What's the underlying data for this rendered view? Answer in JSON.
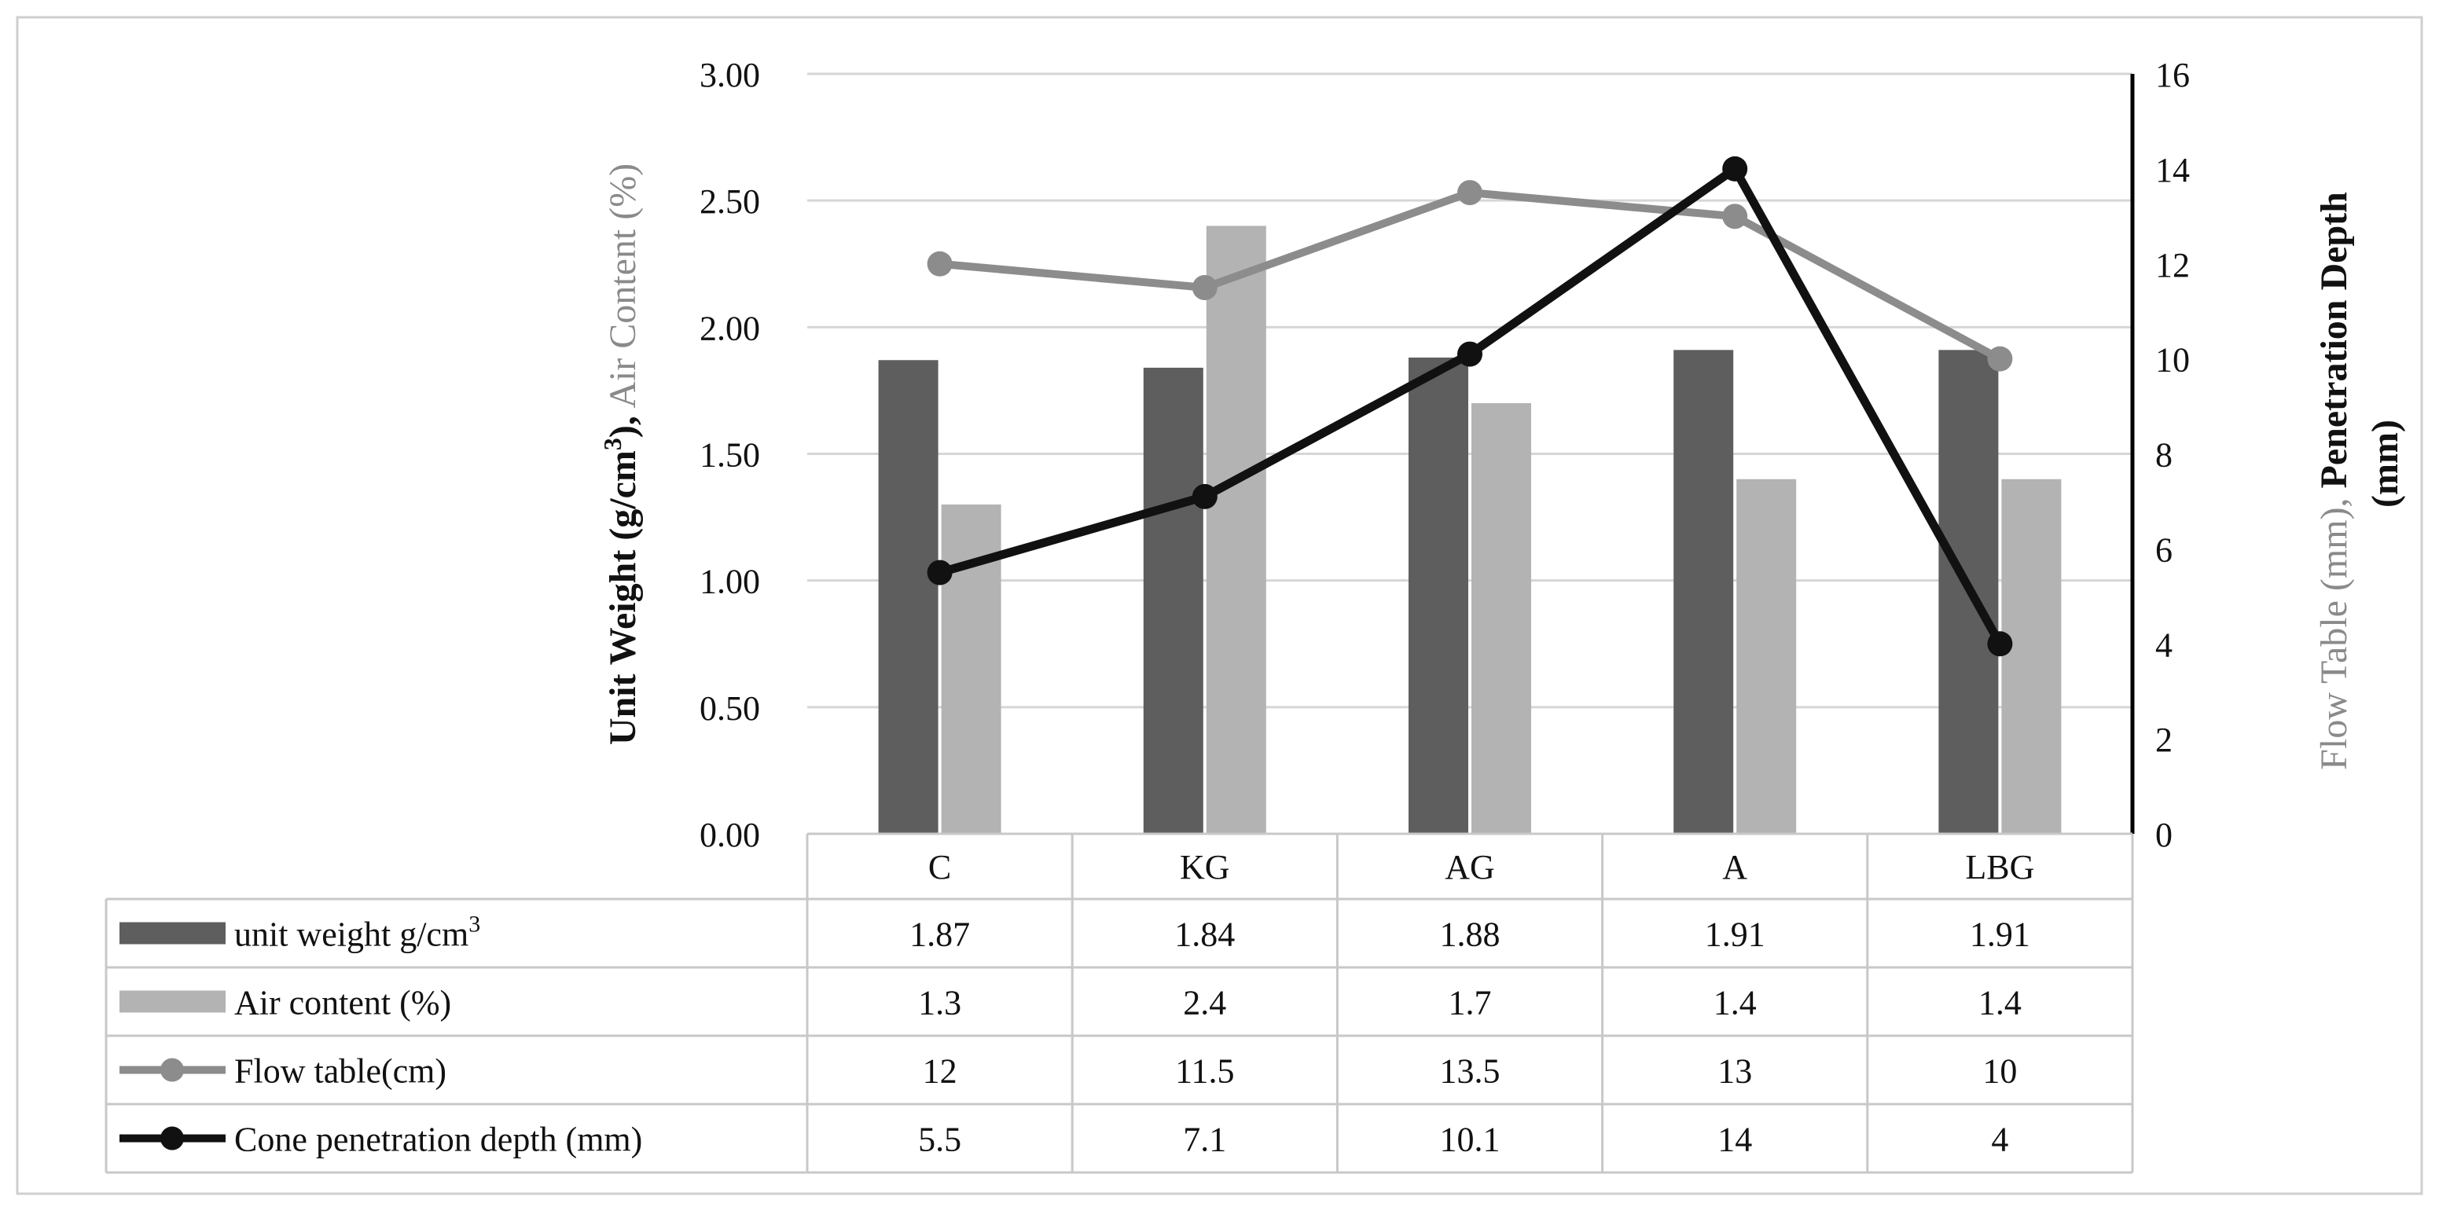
{
  "colors": {
    "unit_weight": "#5e5e5e",
    "air_content": "#b3b3b3",
    "flow_table": "#8c8c8c",
    "cone_penetration": "#111111",
    "grid": "#d6d6d6",
    "table_border": "#c8c8c8",
    "frame": "#cfcfcf",
    "text": "#111111",
    "right_axis_gray_text": "#8a8a8a"
  },
  "chart_data": {
    "type": "bar",
    "categories": [
      "C",
      "KG",
      "AG",
      "A",
      "LBG"
    ],
    "left_axis": {
      "range": [
        0,
        3
      ],
      "ticks": [
        "0.00",
        "0.50",
        "1.00",
        "1.50",
        "2.00",
        "2.50",
        "3.00"
      ],
      "label_black_part": "Unit  Weight (g/cm",
      "label_superscript": "3",
      "label_black_close": "),",
      "label_gray_part": " Air Content (%)"
    },
    "right_axis": {
      "range": [
        0,
        16
      ],
      "ticks": [
        "0",
        "2",
        "4",
        "6",
        "8",
        "10",
        "12",
        "14",
        "16"
      ],
      "label_gray_part": "Flow Table (mm),",
      "label_black_part": " Penetration Depth",
      "label_second_line": "(mm)"
    },
    "series": [
      {
        "name": "unit weight g/cm",
        "name_superscript": "3",
        "kind": "bar",
        "axis": "left",
        "values": [
          1.87,
          1.84,
          1.88,
          1.91,
          1.91
        ],
        "labels": [
          "1.87",
          "1.84",
          "1.88",
          "1.91",
          "1.91"
        ]
      },
      {
        "name": "Air content (%)",
        "kind": "bar",
        "axis": "left",
        "values": [
          1.3,
          2.4,
          1.7,
          1.4,
          1.4
        ],
        "labels": [
          "1.3",
          "2.4",
          "1.7",
          "1.4",
          "1.4"
        ]
      },
      {
        "name": "Flow table(cm)",
        "kind": "line",
        "axis": "right",
        "values": [
          12,
          11.5,
          13.5,
          13,
          10
        ],
        "labels": [
          "12",
          "11.5",
          "13.5",
          "13",
          "10"
        ]
      },
      {
        "name": "Cone penetration depth (mm)",
        "kind": "line",
        "axis": "right",
        "values": [
          5.5,
          7.1,
          10.1,
          14,
          4
        ],
        "labels": [
          "5.5",
          "7.1",
          "10.1",
          "14",
          "4"
        ]
      }
    ]
  }
}
